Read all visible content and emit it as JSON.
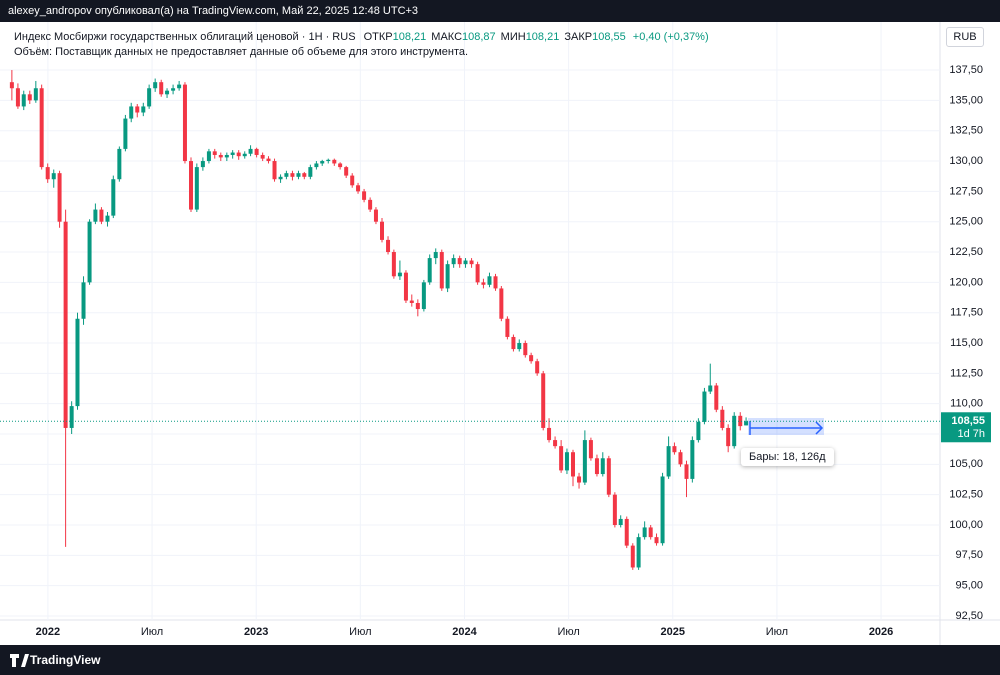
{
  "header": {
    "publisher": "alexey_andropov опубликовал(а) на TradingView.com, Май 22, 2025 12:48 UTC+3"
  },
  "footer": {
    "brand": "TradingView"
  },
  "chart_data": {
    "type": "candlestick",
    "title": "Индекс Мосбиржи государственных облигаций ценовой · 1Н · RUS",
    "ohlc_legend": [
      {
        "label": "ОТКР",
        "value": {
          "value": 108.21,
          "label": "108,21"
        }
      },
      {
        "label": "МАКС",
        "value": {
          "value": 108.87,
          "label": "108,87"
        }
      },
      {
        "label": "МИН",
        "value": {
          "value": 108.21,
          "label": "108,21"
        }
      },
      {
        "label": "ЗАКР",
        "value": {
          "value": 108.55,
          "label": "108,55"
        }
      }
    ],
    "change": "+0,40 (+0,37%)",
    "volume_note": "Объём: Поставщик данных не предоставляет данные об объеме для этого инструмента.",
    "currency": "RUB",
    "last_price": {
      "value": 108.55,
      "label": "108,55"
    },
    "countdown": "1d 7h",
    "measure": "Бары: 18, 126д",
    "up_color": "#089981",
    "down_color": "#f23645",
    "grid": true,
    "xlim": [
      2021.818,
      2026.283
    ],
    "ylim": [
      92.17,
      141.46
    ],
    "xticks": [
      2022,
      {
        "value": 2022.5,
        "label": "Июл"
      },
      2023,
      {
        "value": 2023.5,
        "label": "Июл"
      },
      2024,
      {
        "value": 2024.5,
        "label": "Июл"
      },
      2025,
      {
        "value": 2025.5,
        "label": "Июл"
      },
      2026
    ],
    "yticks": [
      {
        "value": 92.5,
        "label": "92,50"
      },
      {
        "value": 95,
        "label": "95,00"
      },
      {
        "value": 97.5,
        "label": "97,50"
      },
      {
        "value": 100,
        "label": "100,00"
      },
      {
        "value": 102.5,
        "label": "102,50"
      },
      {
        "value": 105,
        "label": "105,00"
      },
      {
        "value": 107.5,
        "label": "107,50"
      },
      {
        "value": 110,
        "label": "110,00"
      },
      {
        "value": 112.5,
        "label": "112,50"
      },
      {
        "value": 115,
        "label": "115,00"
      },
      {
        "value": 117.5,
        "label": "117,50"
      },
      {
        "value": 120,
        "label": "120,00"
      },
      {
        "value": 122.5,
        "label": "122,50"
      },
      {
        "value": 125,
        "label": "125,00"
      },
      {
        "value": 127.5,
        "label": "127,50"
      },
      {
        "value": 130,
        "label": "130,00"
      },
      {
        "value": 132.5,
        "label": "132,50"
      },
      {
        "value": 135,
        "label": "135,00"
      },
      {
        "value": 137.5,
        "label": "137,50"
      }
    ],
    "x": [
      2021.827,
      2021.856,
      2021.884,
      2021.913,
      2021.942,
      2021.97,
      2021.999,
      2022.028,
      2022.056,
      2022.085,
      2022.114,
      2022.142,
      2022.171,
      2022.2,
      2022.228,
      2022.257,
      2022.286,
      2022.314,
      2022.343,
      2022.372,
      2022.4,
      2022.429,
      2022.458,
      2022.486,
      2022.515,
      2022.544,
      2022.572,
      2022.601,
      2022.63,
      2022.658,
      2022.687,
      2022.715,
      2022.744,
      2022.773,
      2022.801,
      2022.83,
      2022.859,
      2022.887,
      2022.916,
      2022.945,
      2022.973,
      2023.002,
      2023.031,
      2023.059,
      2023.088,
      2023.117,
      2023.145,
      2023.174,
      2023.203,
      2023.231,
      2023.26,
      2023.289,
      2023.317,
      2023.346,
      2023.375,
      2023.403,
      2023.432,
      2023.461,
      2023.489,
      2023.518,
      2023.547,
      2023.575,
      2023.604,
      2023.633,
      2023.661,
      2023.69,
      2023.719,
      2023.747,
      2023.776,
      2023.805,
      2023.833,
      2023.862,
      2023.891,
      2023.919,
      2023.948,
      2023.977,
      2024.005,
      2024.034,
      2024.063,
      2024.091,
      2024.12,
      2024.149,
      2024.177,
      2024.206,
      2024.235,
      2024.263,
      2024.292,
      2024.32,
      2024.349,
      2024.378,
      2024.406,
      2024.435,
      2024.464,
      2024.492,
      2024.521,
      2024.55,
      2024.578,
      2024.607,
      2024.636,
      2024.664,
      2024.693,
      2024.722,
      2024.75,
      2024.779,
      2024.808,
      2024.836,
      2024.865,
      2024.894,
      2024.922,
      2024.951,
      2024.98,
      2025.008,
      2025.037,
      2025.066,
      2025.094,
      2025.123,
      2025.152,
      2025.18,
      2025.209,
      2025.238,
      2025.266,
      2025.295,
      2025.324,
      2025.352
    ],
    "ohlc": [
      [
        136.5,
        137.5,
        135.0,
        136.0
      ],
      [
        136.0,
        136.4,
        134.3,
        134.5
      ],
      [
        134.5,
        135.8,
        134.2,
        135.5
      ],
      [
        135.5,
        135.8,
        134.7,
        135.0
      ],
      [
        135.0,
        136.6,
        134.8,
        136.0
      ],
      [
        136.0,
        136.3,
        129.3,
        129.5
      ],
      [
        129.5,
        129.8,
        128.2,
        128.5
      ],
      [
        128.5,
        129.3,
        127.8,
        129.0
      ],
      [
        129.0,
        129.2,
        124.5,
        125.0
      ],
      [
        125.0,
        126.0,
        98.2,
        108.0
      ],
      [
        108.0,
        110.2,
        107.5,
        109.8
      ],
      [
        109.8,
        117.5,
        109.5,
        117.0
      ],
      [
        117.0,
        120.5,
        116.5,
        120.0
      ],
      [
        120.0,
        125.2,
        119.8,
        125.0
      ],
      [
        125.0,
        126.5,
        124.8,
        126.0
      ],
      [
        126.0,
        126.2,
        124.8,
        125.0
      ],
      [
        125.0,
        125.8,
        124.6,
        125.5
      ],
      [
        125.5,
        128.8,
        125.3,
        128.5
      ],
      [
        128.5,
        131.2,
        128.3,
        131.0
      ],
      [
        131.0,
        133.8,
        130.8,
        133.5
      ],
      [
        133.5,
        134.8,
        133.2,
        134.5
      ],
      [
        134.5,
        134.7,
        133.6,
        134.0
      ],
      [
        134.0,
        134.8,
        133.7,
        134.5
      ],
      [
        134.5,
        136.3,
        134.3,
        136.0
      ],
      [
        136.0,
        136.8,
        135.7,
        136.5
      ],
      [
        136.5,
        136.7,
        135.3,
        135.5
      ],
      [
        135.5,
        136.0,
        135.2,
        135.8
      ],
      [
        135.8,
        136.3,
        135.5,
        136.0
      ],
      [
        136.0,
        136.6,
        135.8,
        136.3
      ],
      [
        136.3,
        136.5,
        129.8,
        130.0
      ],
      [
        130.0,
        130.3,
        125.8,
        126.0
      ],
      [
        126.0,
        129.8,
        125.8,
        129.5
      ],
      [
        129.5,
        130.3,
        129.2,
        130.0
      ],
      [
        130.0,
        131.0,
        129.8,
        130.8
      ],
      [
        130.8,
        131.0,
        130.2,
        130.5
      ],
      [
        130.5,
        130.7,
        130.0,
        130.3
      ],
      [
        130.3,
        130.7,
        130.0,
        130.5
      ],
      [
        130.5,
        130.9,
        130.2,
        130.7
      ],
      [
        130.7,
        130.9,
        130.1,
        130.4
      ],
      [
        130.4,
        130.8,
        130.2,
        130.6
      ],
      [
        130.6,
        131.3,
        130.4,
        131.0
      ],
      [
        131.0,
        131.1,
        130.3,
        130.5
      ],
      [
        130.5,
        130.7,
        130.0,
        130.2
      ],
      [
        130.2,
        130.4,
        129.8,
        130.0
      ],
      [
        130.0,
        130.2,
        128.3,
        128.5
      ],
      [
        128.5,
        128.9,
        128.2,
        128.7
      ],
      [
        128.7,
        129.2,
        128.5,
        129.0
      ],
      [
        129.0,
        129.2,
        128.4,
        128.7
      ],
      [
        128.7,
        129.2,
        128.5,
        129.0
      ],
      [
        129.0,
        129.1,
        128.5,
        128.7
      ],
      [
        128.7,
        129.7,
        128.5,
        129.5
      ],
      [
        129.5,
        130.0,
        129.3,
        129.8
      ],
      [
        129.8,
        130.1,
        129.6,
        130.0
      ],
      [
        130.0,
        130.2,
        129.8,
        130.1
      ],
      [
        130.1,
        130.2,
        129.6,
        129.8
      ],
      [
        129.8,
        129.9,
        129.3,
        129.5
      ],
      [
        129.5,
        129.6,
        128.6,
        128.8
      ],
      [
        128.8,
        129.0,
        127.8,
        128.0
      ],
      [
        128.0,
        128.2,
        127.3,
        127.5
      ],
      [
        127.5,
        127.7,
        126.6,
        126.8
      ],
      [
        126.8,
        127.0,
        125.8,
        126.0
      ],
      [
        126.0,
        126.2,
        124.8,
        125.0
      ],
      [
        125.0,
        125.3,
        123.3,
        123.5
      ],
      [
        123.5,
        123.8,
        122.3,
        122.5
      ],
      [
        122.5,
        122.7,
        120.3,
        120.5
      ],
      [
        120.5,
        121.8,
        120.2,
        120.8
      ],
      [
        120.8,
        121.0,
        118.3,
        118.5
      ],
      [
        118.5,
        119.0,
        118.0,
        118.3
      ],
      [
        118.3,
        118.6,
        117.2,
        117.8
      ],
      [
        117.8,
        120.2,
        117.6,
        120.0
      ],
      [
        120.0,
        122.3,
        119.8,
        122.0
      ],
      [
        122.0,
        122.8,
        121.5,
        122.5
      ],
      [
        122.5,
        122.7,
        119.3,
        119.5
      ],
      [
        119.5,
        121.8,
        119.2,
        121.5
      ],
      [
        121.5,
        122.3,
        121.2,
        122.0
      ],
      [
        122.0,
        122.2,
        121.2,
        121.5
      ],
      [
        121.5,
        122.0,
        121.2,
        121.8
      ],
      [
        121.8,
        122.0,
        121.2,
        121.5
      ],
      [
        121.5,
        121.7,
        119.8,
        120.0
      ],
      [
        120.0,
        120.3,
        119.5,
        119.8
      ],
      [
        119.8,
        120.8,
        119.6,
        120.5
      ],
      [
        120.5,
        120.7,
        119.3,
        119.5
      ],
      [
        119.5,
        119.7,
        116.8,
        117.0
      ],
      [
        117.0,
        117.2,
        115.3,
        115.5
      ],
      [
        115.5,
        115.7,
        114.3,
        114.5
      ],
      [
        114.5,
        115.3,
        114.3,
        115.0
      ],
      [
        115.0,
        115.2,
        113.8,
        114.0
      ],
      [
        114.0,
        114.2,
        113.3,
        113.5
      ],
      [
        113.5,
        113.7,
        112.3,
        112.5
      ],
      [
        112.5,
        112.7,
        107.8,
        108.0
      ],
      [
        108.0,
        108.8,
        106.8,
        107.0
      ],
      [
        107.0,
        107.3,
        106.3,
        106.5
      ],
      [
        106.5,
        107.0,
        104.3,
        104.5
      ],
      [
        104.5,
        106.3,
        104.2,
        106.0
      ],
      [
        106.0,
        106.2,
        103.2,
        104.0
      ],
      [
        104.0,
        104.3,
        103.0,
        103.5
      ],
      [
        103.5,
        107.8,
        103.3,
        107.0
      ],
      [
        107.0,
        107.2,
        105.3,
        105.5
      ],
      [
        105.5,
        105.8,
        104.0,
        104.2
      ],
      [
        104.2,
        106.0,
        104.0,
        105.5
      ],
      [
        105.5,
        105.7,
        102.3,
        102.5
      ],
      [
        102.5,
        102.7,
        99.8,
        100.0
      ],
      [
        100.0,
        100.8,
        99.8,
        100.5
      ],
      [
        100.5,
        100.7,
        98.1,
        98.3
      ],
      [
        98.3,
        98.5,
        96.3,
        96.5
      ],
      [
        96.5,
        99.3,
        96.3,
        99.0
      ],
      [
        99.0,
        100.3,
        98.8,
        99.8
      ],
      [
        99.8,
        100.0,
        98.8,
        99.0
      ],
      [
        99.0,
        99.3,
        98.3,
        98.5
      ],
      [
        98.5,
        104.3,
        98.3,
        104.0
      ],
      [
        104.0,
        107.3,
        103.8,
        106.5
      ],
      [
        106.5,
        106.8,
        105.8,
        106.0
      ],
      [
        106.0,
        106.2,
        104.8,
        105.0
      ],
      [
        105.0,
        105.3,
        102.3,
        103.8
      ],
      [
        103.8,
        107.3,
        103.5,
        107.0
      ],
      [
        107.0,
        108.8,
        106.8,
        108.5
      ],
      [
        108.5,
        111.3,
        108.3,
        111.0
      ],
      [
        111.0,
        113.3,
        110.8,
        111.5
      ],
      [
        111.5,
        111.7,
        109.3,
        109.5
      ],
      [
        109.5,
        109.8,
        107.8,
        108.0
      ],
      [
        108.0,
        108.3,
        106.0,
        106.5
      ],
      [
        106.5,
        109.3,
        106.3,
        109.0
      ],
      [
        109.0,
        109.3,
        107.8,
        108.15
      ],
      [
        108.21,
        108.87,
        108.21,
        108.55
      ]
    ]
  }
}
